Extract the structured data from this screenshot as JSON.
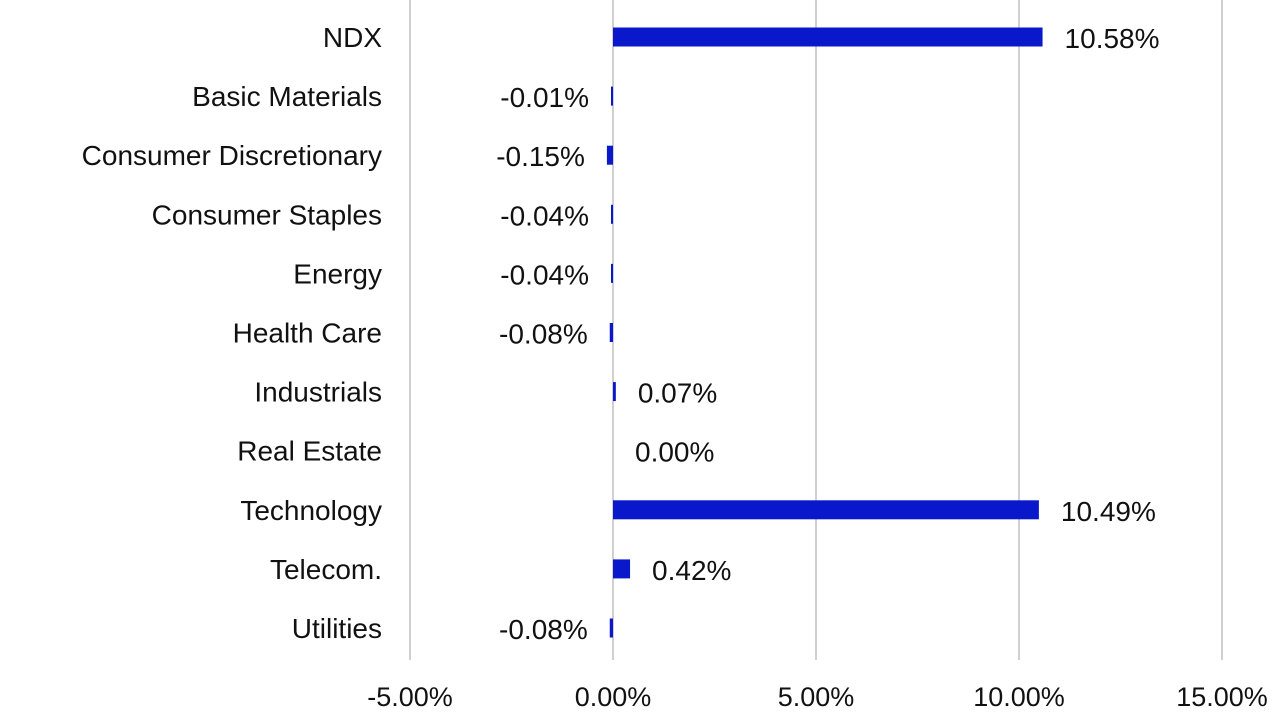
{
  "chart_data": {
    "type": "bar",
    "orientation": "horizontal",
    "title": "",
    "xlabel": "",
    "ylabel": "",
    "categories": [
      "NDX",
      "Basic Materials",
      "Consumer Discretionary",
      "Consumer Staples",
      "Energy",
      "Health Care",
      "Industrials",
      "Real Estate",
      "Technology",
      "Telecom.",
      "Utilities"
    ],
    "values": [
      10.58,
      -0.01,
      -0.15,
      -0.04,
      -0.04,
      -0.08,
      0.07,
      0.0,
      10.49,
      0.42,
      -0.08
    ],
    "value_labels": [
      "10.58%",
      "-0.01%",
      "-0.15%",
      "-0.04%",
      "-0.04%",
      "-0.08%",
      "0.07%",
      "0.00%",
      "10.49%",
      "0.42%",
      "-0.08%"
    ],
    "xlim": [
      -5,
      15
    ],
    "x_ticks": [
      -5,
      0,
      5,
      10,
      15
    ],
    "x_tick_labels": [
      "-5.00%",
      "0.00%",
      "5.00%",
      "10.00%",
      "15.00%"
    ],
    "grid": true,
    "colors": {
      "bar": "#0a18cc",
      "grid": "#d0d0d0",
      "text": "#111111"
    }
  }
}
